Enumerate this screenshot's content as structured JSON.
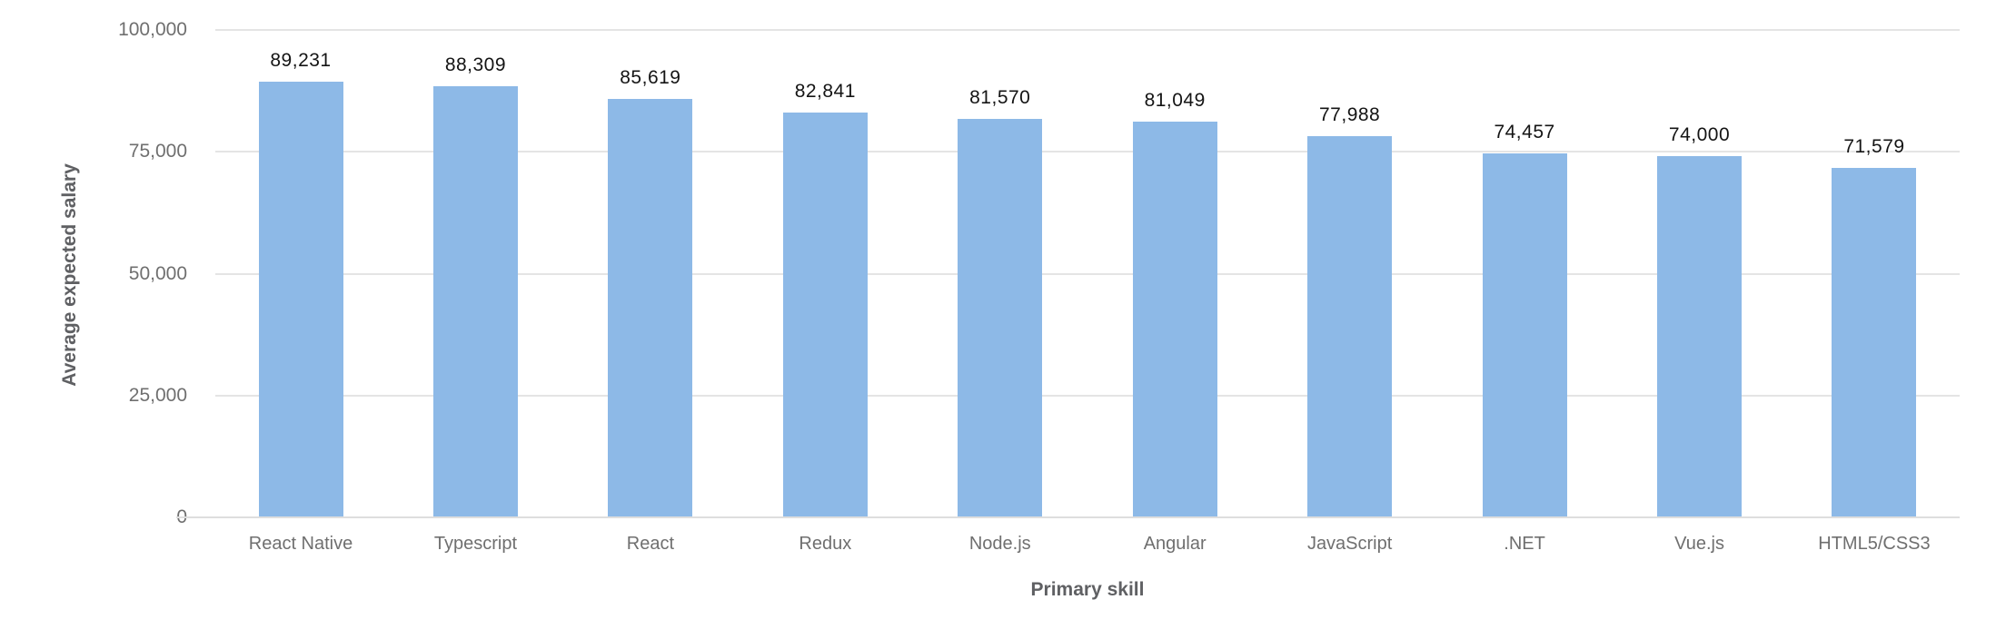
{
  "chart_data": {
    "type": "bar",
    "title": "",
    "xlabel": "Primary skill",
    "ylabel": "Average expected salary",
    "categories": [
      "React Native",
      "Typescript",
      "React",
      "Redux",
      "Node.js",
      "Angular",
      "JavaScript",
      ".NET",
      "Vue.js",
      "HTML5/CSS3"
    ],
    "values": [
      89231,
      88309,
      85619,
      82841,
      81570,
      81049,
      77988,
      74457,
      74000,
      71579
    ],
    "value_labels": [
      "89,231",
      "88,309",
      "85,619",
      "82,841",
      "81,570",
      "81,049",
      "77,988",
      "74,457",
      "74,000",
      "71,579"
    ],
    "ytick_values": [
      100000,
      75000,
      50000,
      25000,
      0
    ],
    "ytick_labels": [
      "100,000",
      "75,000",
      "50,000",
      "25,000",
      "0"
    ],
    "ylim": [
      0,
      100000
    ],
    "grid": "horizontal",
    "legend": "none"
  },
  "colors": {
    "bar_fill": "#8DB9E7",
    "gridline": "#e4e4e4",
    "zero_line": "#dedede",
    "tick_label": "#6f6f6f",
    "value_label": "#141414",
    "axis_title": "#5f6063",
    "background": "#ffffff"
  }
}
